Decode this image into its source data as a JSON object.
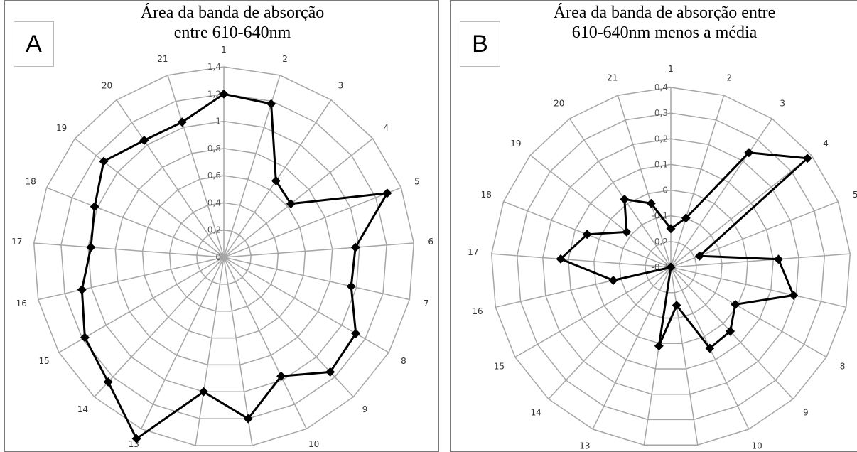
{
  "chart_data": [
    {
      "type": "radar",
      "panel_label": "A",
      "title_lines": [
        "Área da banda de absorção",
        "entre 610-640nm"
      ],
      "categories": [
        "1",
        "2",
        "3",
        "4",
        "5",
        "6",
        "7",
        "8",
        "9",
        "10",
        "11",
        "12",
        "13",
        "14",
        "15",
        "16",
        "17",
        "18",
        "19",
        "20",
        "21"
      ],
      "tick_labels": [
        "0",
        "0,2",
        "0,4",
        "0,6",
        "0,8",
        "1",
        "1,2",
        "1,4"
      ],
      "rlim": [
        0,
        1.4
      ],
      "grid": true,
      "legend": "none",
      "series": [
        {
          "values": [
            1.2,
            1.18,
            0.68,
            0.63,
            1.29,
            0.97,
            0.96,
            1.12,
            1.15,
            0.97,
            1.2,
            1.0,
            1.48,
            1.25,
            1.18,
            1.07,
            0.98,
            1.02,
            1.13,
            1.04,
            1.04
          ]
        }
      ]
    },
    {
      "type": "radar",
      "panel_label": "B",
      "title_lines": [
        "Área da banda de absorção entre",
        "610-640nm menos a média"
      ],
      "categories": [
        "1",
        "2",
        "3",
        "4",
        "5",
        "6",
        "7",
        "8",
        "9",
        "10",
        "11",
        "12",
        "13",
        "14",
        "15",
        "16",
        "17",
        "18",
        "19",
        "20",
        "21"
      ],
      "tick_labels": [
        "-0,3",
        "-0,2",
        "-0,1",
        "0",
        "0,1",
        "0,2",
        "0,3",
        "0,4"
      ],
      "rlim": [
        -0.3,
        0.4
      ],
      "grid": true,
      "legend": "none",
      "series": [
        {
          "values": [
            -0.15,
            -0.1,
            0.24,
            0.38,
            -0.18,
            0.12,
            0.19,
            -0.01,
            0.04,
            0.05,
            -0.15,
            0.01,
            -0.3,
            -0.3,
            -0.3,
            -0.07,
            0.13,
            0.05,
            -0.08,
            0.02,
            -0.04
          ]
        }
      ]
    }
  ]
}
